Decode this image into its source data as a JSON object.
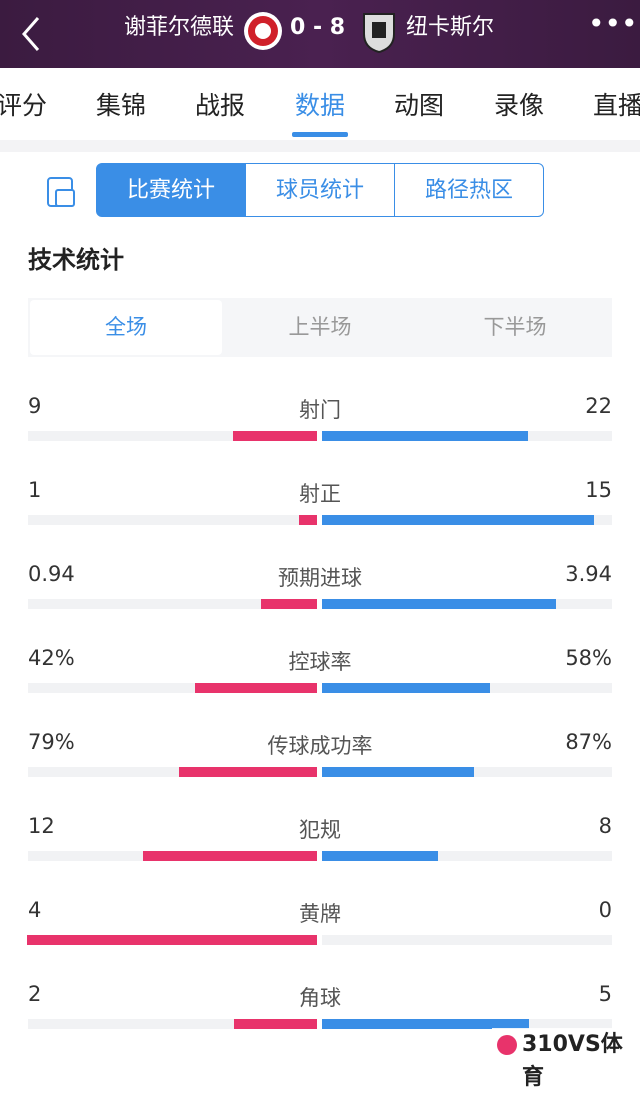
{
  "header": {
    "home": "谢菲尔德联",
    "score": "0 - 8",
    "away": "纽卡斯尔"
  },
  "tabs": [
    "评分",
    "集锦",
    "战报",
    "数据",
    "动图",
    "录像",
    "直播"
  ],
  "segments": [
    "比赛统计",
    "球员统计",
    "路径热区"
  ],
  "section_title": "技术统计",
  "periods": [
    "全场",
    "上半场",
    "下半场"
  ],
  "stats": [
    {
      "name": "射门",
      "home": "9",
      "away": "22"
    },
    {
      "name": "射正",
      "home": "1",
      "away": "15"
    },
    {
      "name": "预期进球",
      "home": "0.94",
      "away": "3.94"
    },
    {
      "name": "控球率",
      "home": "42%",
      "away": "58%"
    },
    {
      "name": "传球成功率",
      "home": "79%",
      "away": "87%"
    },
    {
      "name": "犯规",
      "home": "12",
      "away": "8"
    },
    {
      "name": "黄牌",
      "home": "4",
      "away": "0"
    },
    {
      "name": "角球",
      "home": "2",
      "away": "5"
    }
  ],
  "watermark": "310VS体育"
}
